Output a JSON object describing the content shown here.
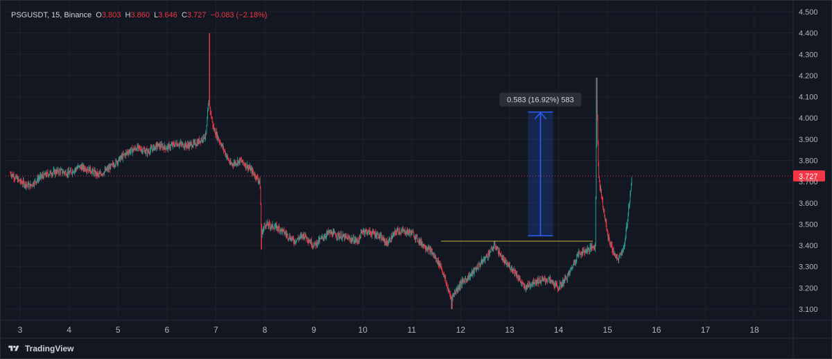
{
  "header": {
    "symbol": "PSGUSDT, 15, Binance",
    "o_label": "O",
    "o_value": "3.803",
    "h_label": "H",
    "h_value": "3.860",
    "l_label": "L",
    "l_value": "3.646",
    "c_label": "C",
    "c_value": "3.727",
    "change": "−0.083 (−2.18%)"
  },
  "footer": {
    "brand": "TradingView",
    "logo_icon": "tradingview-logo-icon"
  },
  "colors": {
    "up": "#26a69a",
    "down": "#f23645",
    "bg": "#131722",
    "measure": "#2962ff",
    "line": "#c8b33a",
    "grid": "#1e222d"
  },
  "chart_data": {
    "type": "line",
    "title": "PSGUSDT, 15, Binance",
    "ylim": [
      3.05,
      4.5
    ],
    "y_ticks": [
      "4.500",
      "4.400",
      "4.300",
      "4.200",
      "4.100",
      "4.000",
      "3.900",
      "3.800",
      "3.700",
      "3.600",
      "3.500",
      "3.400",
      "3.300",
      "3.200",
      "3.100"
    ],
    "x_ticks": [
      "3",
      "4",
      "5",
      "6",
      "7",
      "8",
      "9",
      "10",
      "11",
      "12",
      "13",
      "14",
      "15",
      "16",
      "17",
      "18"
    ],
    "xlim": [
      2.8,
      18.4
    ],
    "last_price": "3.727",
    "series": [
      {
        "points": [
          [
            2.8,
            3.74
          ],
          [
            3.0,
            3.7
          ],
          [
            3.2,
            3.68
          ],
          [
            3.4,
            3.72
          ],
          [
            3.6,
            3.74
          ],
          [
            3.8,
            3.75
          ],
          [
            4.0,
            3.74
          ],
          [
            4.2,
            3.77
          ],
          [
            4.4,
            3.76
          ],
          [
            4.6,
            3.73
          ],
          [
            4.8,
            3.76
          ],
          [
            5.0,
            3.8
          ],
          [
            5.2,
            3.84
          ],
          [
            5.4,
            3.86
          ],
          [
            5.6,
            3.84
          ],
          [
            5.8,
            3.87
          ],
          [
            6.0,
            3.86
          ],
          [
            6.2,
            3.88
          ],
          [
            6.4,
            3.87
          ],
          [
            6.6,
            3.88
          ],
          [
            6.8,
            3.92
          ],
          [
            6.85,
            4.08
          ],
          [
            6.95,
            3.95
          ],
          [
            7.1,
            3.88
          ],
          [
            7.3,
            3.78
          ],
          [
            7.5,
            3.8
          ],
          [
            7.7,
            3.76
          ],
          [
            7.9,
            3.7
          ],
          [
            7.93,
            3.45
          ],
          [
            8.0,
            3.5
          ],
          [
            8.3,
            3.48
          ],
          [
            8.6,
            3.42
          ],
          [
            8.8,
            3.45
          ],
          [
            9.0,
            3.4
          ],
          [
            9.3,
            3.46
          ],
          [
            9.6,
            3.44
          ],
          [
            9.9,
            3.42
          ],
          [
            10.0,
            3.47
          ],
          [
            10.3,
            3.45
          ],
          [
            10.5,
            3.41
          ],
          [
            10.7,
            3.47
          ],
          [
            11.0,
            3.46
          ],
          [
            11.2,
            3.41
          ],
          [
            11.4,
            3.37
          ],
          [
            11.6,
            3.3
          ],
          [
            11.8,
            3.15
          ],
          [
            12.0,
            3.22
          ],
          [
            12.2,
            3.26
          ],
          [
            12.5,
            3.34
          ],
          [
            12.7,
            3.4
          ],
          [
            12.9,
            3.32
          ],
          [
            13.1,
            3.28
          ],
          [
            13.3,
            3.2
          ],
          [
            13.5,
            3.23
          ],
          [
            13.8,
            3.24
          ],
          [
            14.0,
            3.2
          ],
          [
            14.2,
            3.26
          ],
          [
            14.4,
            3.36
          ],
          [
            14.6,
            3.38
          ],
          [
            14.75,
            3.4
          ],
          [
            14.78,
            4.1
          ],
          [
            14.82,
            3.72
          ],
          [
            14.9,
            3.6
          ],
          [
            15.0,
            3.45
          ],
          [
            15.1,
            3.38
          ],
          [
            15.2,
            3.33
          ],
          [
            15.35,
            3.4
          ],
          [
            15.5,
            3.72
          ]
        ]
      }
    ],
    "horizontal_line": {
      "y": 3.42,
      "x_start": 11.6,
      "x_end": 14.7
    },
    "measure": {
      "x": 13.8,
      "y_start": 3.445,
      "y_end": 4.028,
      "label": "0.583 (16.92%) 583"
    }
  }
}
